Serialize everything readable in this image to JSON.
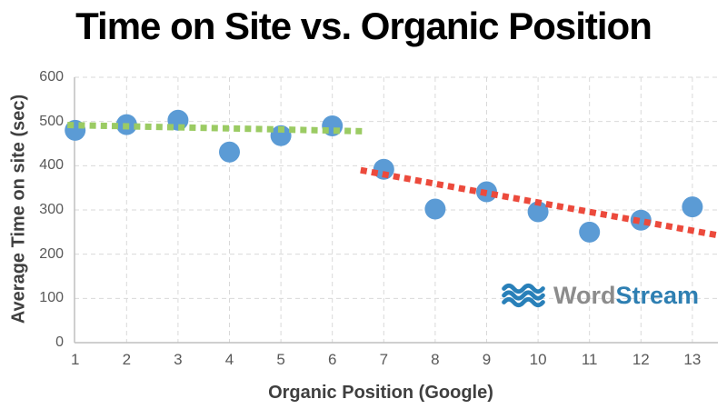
{
  "chart_data": {
    "type": "scatter",
    "title": "Time on Site vs. Organic Position",
    "xlabel": "Organic Position (Google)",
    "ylabel": "Average Time on site (sec)",
    "x": [
      1,
      2,
      3,
      4,
      5,
      6,
      7,
      8,
      9,
      10,
      11,
      12,
      13
    ],
    "values": [
      480,
      493,
      503,
      431,
      468,
      490,
      392,
      302,
      341,
      296,
      250,
      277,
      307
    ],
    "ylim": [
      0,
      600
    ],
    "yticks": [
      0,
      100,
      200,
      300,
      400,
      500,
      600
    ],
    "grid": true,
    "legend": "none",
    "point_color": "#5B9BD5",
    "gridline_color": "#D9D9D9",
    "axis_line_color": "#BFBFBF",
    "tick_label_color": "#595959",
    "axis_title_color": "#3F3F3F",
    "title_color": "#000000",
    "trendlines": [
      {
        "label": "flat trend over positions 1-6",
        "color": "#9BCB63",
        "x_start": 0.85,
        "y_start": 492,
        "x_end": 6.6,
        "y_end": 478
      },
      {
        "label": "declining trend over positions 7-13",
        "color": "#EC4A3C",
        "x_start": 6.55,
        "y_start": 390,
        "x_end": 13.55,
        "y_end": 242
      }
    ]
  },
  "logo": {
    "word": "Word",
    "stream": "Stream",
    "word_color": "#8C8C8C",
    "stream_color": "#2E7FB2",
    "icon_color": "#2980B9",
    "icon": "waves-icon"
  }
}
